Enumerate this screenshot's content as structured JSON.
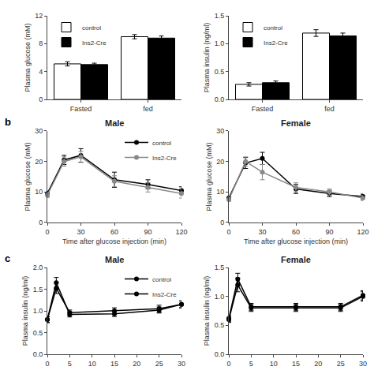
{
  "chart_data": [
    {
      "type": "bar",
      "categories": [
        "Fasted",
        "fed"
      ],
      "series": [
        {
          "name": "control",
          "color": "white",
          "values": [
            5.1,
            9.0
          ],
          "errors": [
            0.3,
            0.3
          ]
        },
        {
          "name": "Ins2-Cre",
          "color": "black",
          "values": [
            5.0,
            8.8
          ],
          "errors": [
            0.2,
            0.3
          ]
        }
      ],
      "ylabel": "Plasma glucose (mM)",
      "ylim": [
        0,
        12
      ],
      "yticks": [
        0,
        4,
        8,
        12
      ],
      "legend": "upper left",
      "grid": false
    },
    {
      "type": "bar",
      "categories": [
        "Fasted",
        "fed"
      ],
      "series": [
        {
          "name": "control",
          "color": "white",
          "values": [
            0.27,
            1.19
          ],
          "errors": [
            0.03,
            0.06
          ]
        },
        {
          "name": "Ins2-Cre",
          "color": "black",
          "values": [
            0.3,
            1.14
          ],
          "errors": [
            0.03,
            0.05
          ]
        }
      ],
      "ylabel": "Plasma insulin (ng/ml)",
      "ylim": [
        0.0,
        1.5
      ],
      "yticks": [
        {
          "value": 0,
          "label": "0.0"
        },
        0.5,
        {
          "value": 1,
          "label": "1.0"
        },
        1.5
      ],
      "legend": "upper left",
      "grid": false
    },
    {
      "type": "line",
      "title": "Male",
      "annotations": [
        "b"
      ],
      "x": [
        0,
        15,
        30,
        60,
        90,
        120
      ],
      "series": [
        {
          "name": "control",
          "color": "black",
          "marker": "circle",
          "values": [
            9.5,
            20.5,
            22.0,
            14.0,
            12.5,
            10.5
          ],
          "errors": [
            0.8,
            1.5,
            2.2,
            2.5,
            1.5,
            1.2
          ]
        },
        {
          "name": "Ins2-Cre",
          "color": "#888888",
          "marker": "circle",
          "values": [
            9.0,
            20.0,
            21.5,
            13.5,
            11.5,
            9.5
          ],
          "errors": [
            0.8,
            1.5,
            1.8,
            1.8,
            1.5,
            1.5
          ]
        }
      ],
      "xlabel": "Time after glucose injection (min)",
      "ylabel": "Plasma glucose (mM)",
      "xlim": [
        0,
        120
      ],
      "xticks": [
        0,
        30,
        60,
        90,
        120
      ],
      "ylim": [
        0,
        30
      ],
      "yticks": [
        0,
        10,
        20,
        30
      ],
      "legend": "upper right",
      "grid": false
    },
    {
      "type": "line",
      "title": "Female",
      "x": [
        0,
        15,
        30,
        60,
        90,
        120
      ],
      "series": [
        {
          "name": "control",
          "color": "black",
          "marker": "circle",
          "values": [
            8.0,
            19.5,
            21.0,
            11.0,
            9.5,
            8.5
          ],
          "errors": [
            0.5,
            1.8,
            2.0,
            1.5,
            1.0,
            0.8
          ]
        },
        {
          "name": "Ins2-Cre",
          "color": "#888888",
          "marker": "circle",
          "values": [
            7.5,
            20.0,
            16.5,
            11.5,
            10.0,
            8.0
          ],
          "errors": [
            0.5,
            1.5,
            2.5,
            1.5,
            1.0,
            0.8
          ]
        }
      ],
      "xlabel": "Time after glucose injection (min)",
      "ylabel": "Plasma glucose (mM)",
      "xlim": [
        0,
        120
      ],
      "xticks": [
        0,
        30,
        60,
        90,
        120
      ],
      "ylim": [
        0,
        30
      ],
      "yticks": [
        0,
        10,
        20,
        30
      ],
      "grid": false
    },
    {
      "type": "line",
      "title": "Male",
      "annotations": [
        "c"
      ],
      "x": [
        0,
        2,
        5,
        15,
        25,
        30
      ],
      "series": [
        {
          "name": "control",
          "color": "black",
          "marker": "circle",
          "values": [
            0.8,
            1.52,
            0.96,
            1.0,
            1.05,
            1.15
          ],
          "errors": [
            0.07,
            0.12,
            0.06,
            0.07,
            0.08,
            0.08
          ]
        },
        {
          "name": "Ins2-Cre",
          "color": "black",
          "marker": "circle",
          "values": [
            0.8,
            1.65,
            0.92,
            0.93,
            1.02,
            1.15
          ],
          "errors": [
            0.07,
            0.12,
            0.06,
            0.06,
            0.07,
            0.08
          ]
        }
      ],
      "ylabel": "Plasma insulin (ng/ml)",
      "xlim": [
        0,
        30
      ],
      "xticks": [
        0,
        5,
        10,
        15,
        20,
        25,
        30
      ],
      "ylim": [
        0.0,
        2.0
      ],
      "yticks": [
        {
          "value": 0,
          "label": "0.0"
        },
        0.5,
        {
          "value": 1,
          "label": "1.0"
        },
        1.5,
        {
          "value": 2,
          "label": "2.0"
        }
      ],
      "legend": "upper right",
      "grid": false
    },
    {
      "type": "line",
      "title": "Female",
      "x": [
        0,
        2,
        5,
        15,
        25,
        30
      ],
      "series": [
        {
          "name": "control",
          "color": "black",
          "marker": "circle",
          "values": [
            0.6,
            1.2,
            0.8,
            0.8,
            0.8,
            1.0
          ],
          "errors": [
            0.05,
            0.12,
            0.06,
            0.06,
            0.06,
            0.08
          ]
        },
        {
          "name": "Ins2-Cre",
          "color": "black",
          "marker": "circle",
          "values": [
            0.62,
            1.3,
            0.82,
            0.82,
            0.82,
            1.02
          ],
          "errors": [
            0.05,
            0.1,
            0.06,
            0.06,
            0.06,
            0.08
          ]
        }
      ],
      "ylabel": "Plasma insulin (ng/ml)",
      "xlim": [
        0,
        30
      ],
      "xticks": [
        0,
        5,
        10,
        15,
        20,
        25,
        30
      ],
      "ylim": [
        0.0,
        1.5
      ],
      "yticks": [
        {
          "value": 0,
          "label": "0.0"
        },
        0.5,
        {
          "value": 1,
          "label": "1.0"
        },
        1.5
      ],
      "grid": false
    }
  ]
}
